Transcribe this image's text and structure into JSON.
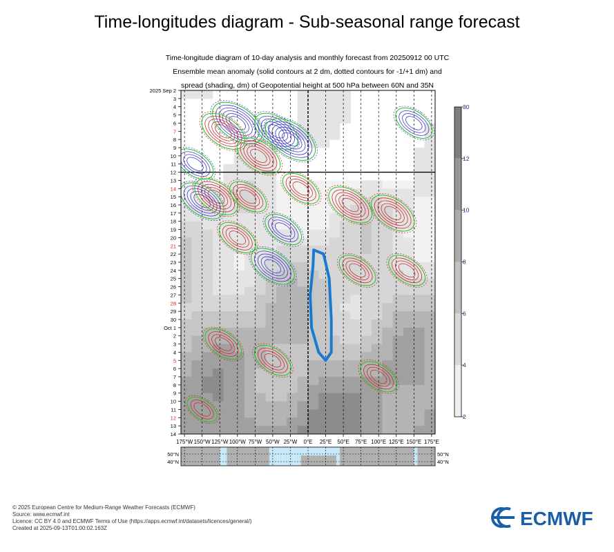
{
  "title": "Time-longitudes diagram - Sub-seasonal range forecast",
  "subtitle_lines": [
    "Time-longitude diagram of 10-day analysis and monthly forecast from 20250912 00 UTC",
    "Ensemble mean anomaly (solid contours at 2 dm, dotted contours for -1/+1 dm) and",
    "spread (shading, dm) of Geopotential height at 500 hPa between 60N and 35N"
  ],
  "footer_lines": [
    "© 2025 European Centre for Medium-Range Weather Forecasts (ECMWF)",
    "Source: www.ecmwf.int",
    "Licence: CC BY 4.0 and ECMWF Terms of Use (https://apps.ecmwf.int/datasets/licences/general/)",
    "Created at 2025-09-13T01:00:02.163Z"
  ],
  "logo_text": "ECMWF",
  "colors": {
    "positive_contour": "#c8302a",
    "negative_contour": "#3a3ac8",
    "zero_contour": "#22c022",
    "highlight_contour": "#1a7ad0",
    "shade_light": "#e6e6e6",
    "shade_dark": "#7a7a7a",
    "map_sea": "#c6e8f8",
    "map_land": "#b0b0b0",
    "sunday_label": "#d02020",
    "colorbar_label": "#2a2a7a"
  },
  "chart_data": {
    "type": "heatmap",
    "variable": "Geopotential height at 500 hPa",
    "x_tick_labels": [
      "175°W",
      "150°W",
      "125°W",
      "100°W",
      "75°W",
      "50°W",
      "25°W",
      "0°E",
      "25°E",
      "50°E",
      "75°E",
      "100°E",
      "125°E",
      "150°E",
      "175°E"
    ],
    "x_tick_values": [
      -175,
      -150,
      -125,
      -100,
      -75,
      -50,
      -25,
      0,
      25,
      50,
      75,
      100,
      125,
      150,
      175
    ],
    "xlim": [
      -180,
      180
    ],
    "y_labels": [
      {
        "text": "2025 Sep  2",
        "day": 2,
        "sunday": false
      },
      {
        "text": "3",
        "day": 3,
        "sunday": false
      },
      {
        "text": "4",
        "day": 4,
        "sunday": false
      },
      {
        "text": "5",
        "day": 5,
        "sunday": false
      },
      {
        "text": "6",
        "day": 6,
        "sunday": false
      },
      {
        "text": "7",
        "day": 7,
        "sunday": true
      },
      {
        "text": "8",
        "day": 8,
        "sunday": false
      },
      {
        "text": "9",
        "day": 9,
        "sunday": false
      },
      {
        "text": "10",
        "day": 10,
        "sunday": false
      },
      {
        "text": "11",
        "day": 11,
        "sunday": false
      },
      {
        "text": "12",
        "day": 12,
        "sunday": false
      },
      {
        "text": "13",
        "day": 13,
        "sunday": false
      },
      {
        "text": "14",
        "day": 14,
        "sunday": true
      },
      {
        "text": "15",
        "day": 15,
        "sunday": false
      },
      {
        "text": "16",
        "day": 16,
        "sunday": false
      },
      {
        "text": "17",
        "day": 17,
        "sunday": false
      },
      {
        "text": "18",
        "day": 18,
        "sunday": false
      },
      {
        "text": "19",
        "day": 19,
        "sunday": false
      },
      {
        "text": "20",
        "day": 20,
        "sunday": false
      },
      {
        "text": "21",
        "day": 21,
        "sunday": true
      },
      {
        "text": "22",
        "day": 22,
        "sunday": false
      },
      {
        "text": "23",
        "day": 23,
        "sunday": false
      },
      {
        "text": "24",
        "day": 24,
        "sunday": false
      },
      {
        "text": "25",
        "day": 25,
        "sunday": false
      },
      {
        "text": "26",
        "day": 26,
        "sunday": false
      },
      {
        "text": "27",
        "day": 27,
        "sunday": false
      },
      {
        "text": "28",
        "day": 28,
        "sunday": true
      },
      {
        "text": "29",
        "day": 29,
        "sunday": false
      },
      {
        "text": "30",
        "day": 30,
        "sunday": false
      },
      {
        "text": "Oct  1",
        "day": 31,
        "sunday": false
      },
      {
        "text": "2",
        "day": 32,
        "sunday": false
      },
      {
        "text": "3",
        "day": 33,
        "sunday": false
      },
      {
        "text": "4",
        "day": 34,
        "sunday": false
      },
      {
        "text": "5",
        "day": 35,
        "sunday": true
      },
      {
        "text": "6",
        "day": 36,
        "sunday": false
      },
      {
        "text": "7",
        "day": 37,
        "sunday": false
      },
      {
        "text": "8",
        "day": 38,
        "sunday": false
      },
      {
        "text": "9",
        "day": 39,
        "sunday": false
      },
      {
        "text": "10",
        "day": 40,
        "sunday": false
      },
      {
        "text": "11",
        "day": 41,
        "sunday": false
      },
      {
        "text": "12",
        "day": 42,
        "sunday": true
      },
      {
        "text": "13",
        "day": 43,
        "sunday": false
      },
      {
        "text": "14",
        "day": 44,
        "sunday": false
      }
    ],
    "analysis_end_day": 12,
    "colorbar": {
      "range": [
        2,
        30
      ],
      "tick_labels": [
        "2",
        "4",
        "6",
        "8",
        "10",
        "12",
        "30"
      ],
      "levels": [
        2,
        4,
        6,
        8,
        10,
        12,
        30
      ]
    },
    "map_lat_labels": [
      "50°N",
      "40°N"
    ],
    "features": [
      {
        "kind": "negative",
        "lon": -100,
        "day": 6,
        "amp": 5
      },
      {
        "kind": "negative",
        "lon": -45,
        "day": 7,
        "amp": 4
      },
      {
        "kind": "negative",
        "lon": -25,
        "day": 8,
        "amp": 5
      },
      {
        "kind": "negative",
        "lon": -160,
        "day": 11,
        "amp": 3
      },
      {
        "kind": "negative",
        "lon": -150,
        "day": 15.5,
        "amp": 4
      },
      {
        "kind": "negative",
        "lon": 150,
        "day": 6,
        "amp": 3
      },
      {
        "kind": "negative",
        "lon": -50,
        "day": 23.5,
        "amp": 4
      },
      {
        "kind": "negative",
        "lon": -35,
        "day": 19,
        "amp": 3
      },
      {
        "kind": "positive",
        "lon": -120,
        "day": 7,
        "amp": 4
      },
      {
        "kind": "positive",
        "lon": -70,
        "day": 10,
        "amp": 4
      },
      {
        "kind": "positive",
        "lon": -130,
        "day": 15,
        "amp": 4
      },
      {
        "kind": "positive",
        "lon": -85,
        "day": 15,
        "amp": 3
      },
      {
        "kind": "positive",
        "lon": -10,
        "day": 14,
        "amp": 3
      },
      {
        "kind": "positive",
        "lon": 60,
        "day": 16,
        "amp": 4
      },
      {
        "kind": "positive",
        "lon": 120,
        "day": 17,
        "amp": 4
      },
      {
        "kind": "positive",
        "lon": -100,
        "day": 20,
        "amp": 3
      },
      {
        "kind": "positive",
        "lon": 70,
        "day": 24,
        "amp": 3
      },
      {
        "kind": "positive",
        "lon": 140,
        "day": 24,
        "amp": 3
      },
      {
        "kind": "positive",
        "lon": -120,
        "day": 33,
        "amp": 3
      },
      {
        "kind": "positive",
        "lon": -50,
        "day": 35,
        "amp": 3
      },
      {
        "kind": "positive",
        "lon": 100,
        "day": 37,
        "amp": 3
      },
      {
        "kind": "positive",
        "lon": -150,
        "day": 41,
        "amp": 2
      }
    ]
  }
}
